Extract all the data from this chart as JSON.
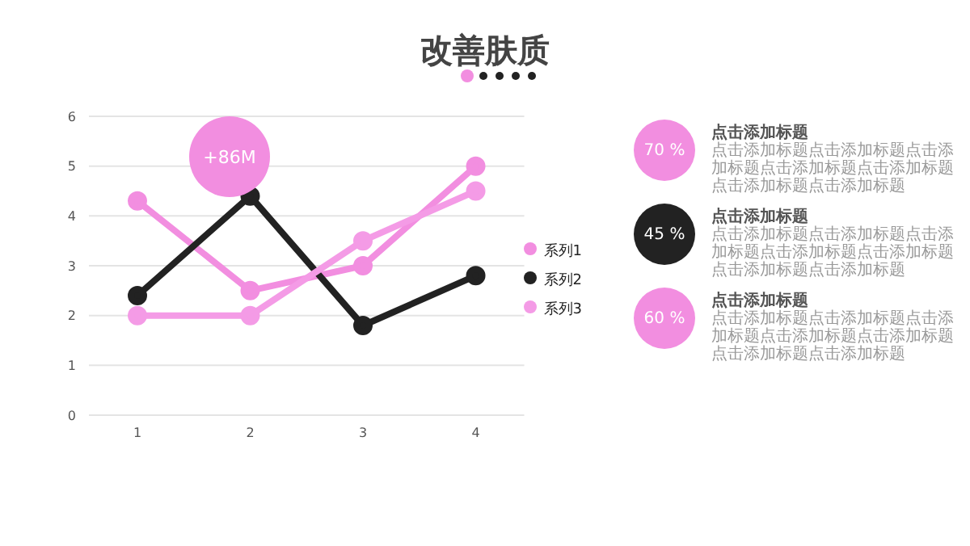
{
  "chart_data": [
    {
      "type": "line",
      "title": "改善肤质",
      "categories": [
        "1",
        "2",
        "3",
        "4"
      ],
      "series": [
        {
          "name": "系列1",
          "color": "#f28ee0",
          "values": [
            4.3,
            2.5,
            3.0,
            5.0
          ]
        },
        {
          "name": "系列2",
          "color": "#222222",
          "values": [
            2.4,
            4.4,
            1.8,
            2.8
          ]
        },
        {
          "name": "系列3",
          "color": "#f49be6",
          "values": [
            2.0,
            2.0,
            3.5,
            4.5
          ]
        }
      ],
      "ylim": [
        0,
        6
      ],
      "yticks": [
        0,
        1,
        2,
        3,
        4,
        5,
        6
      ],
      "grid": "y",
      "legend": "right",
      "marker": "circle",
      "line_style": "solid",
      "annotations": [
        "+86M"
      ]
    },
    {
      "type": "other",
      "annotations": [
        "70 %",
        "点击添加标题",
        "点击添加标题点击添加标题点击添加标题点击添加标题点击添加标题点击添加标题点击添加标题",
        "45 %",
        "点击添加标题",
        "点击添加标题点击添加标题点击添加标题点击添加标题点击添加标题点击添加标题点击添加标题",
        "60 %",
        "点击添加标题",
        "点击添加标题点击添加标题点击添加标题点击添加标题点击添加标题点击添加标题点击添加标题"
      ]
    }
  ]
}
